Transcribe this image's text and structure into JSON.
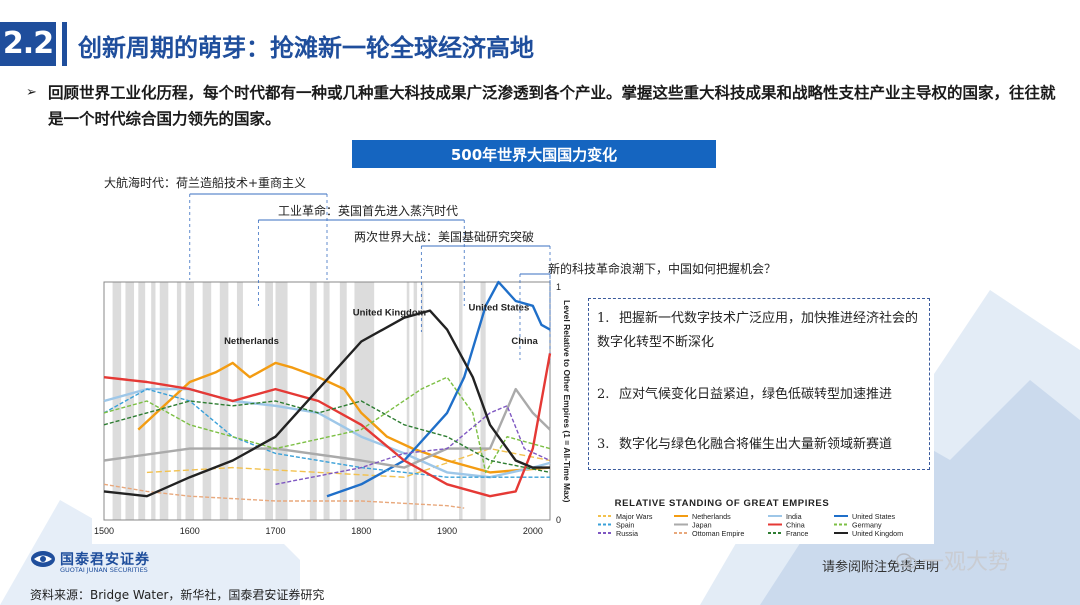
{
  "section": {
    "number": "2.2",
    "title": "创新周期的萌芽：抢滩新一轮全球经济高地"
  },
  "bullet": {
    "arrow": "➢",
    "text": "回顾世界工业化历程，每个时代都有一种或几种重大科技成果广泛渗透到各个产业。掌握这些重大科技成果和战略性支柱产业主导权的国家，往往就是一个时代综合国力领先的国家。"
  },
  "chart_header": "500年世界大国国力变化",
  "eras": [
    {
      "label": "大航海时代：荷兰造船技术+重商主义"
    },
    {
      "label": "工业革命：英国首先进入蒸汽时代"
    },
    {
      "label": "两次世界大战：美国基础研究突破"
    },
    {
      "label": "新的科技革命浪潮下，中国如何把握机会？"
    }
  ],
  "points": [
    {
      "num": "1.",
      "text": "把握新一代数字技术广泛应用，加快推进经济社会的数字化转型不断深化"
    },
    {
      "num": "2.",
      "text": "应对气候变化日益紧迫，绿色低碳转型加速推进"
    },
    {
      "num": "3.",
      "text": "数字化与绿色化融合将催生出大量新领域新赛道"
    }
  ],
  "chart_data": {
    "type": "line",
    "title": "RELATIVE STANDING OF GREAT EMPIRES",
    "ylabel": "Level Relative to Other Empires (1 = All-Time Max)",
    "xlim": [
      1500,
      2020
    ],
    "ylim": [
      0,
      1
    ],
    "x_ticks": [
      "1500",
      "1600",
      "1700",
      "1800",
      "1900",
      "2000"
    ],
    "y_ticks": [
      "0",
      "1"
    ],
    "legend_position": "bottom",
    "inline_labels": [
      "Netherlands",
      "United Kingdom",
      "United States",
      "China"
    ],
    "series": [
      {
        "name": "Major Wars",
        "color": "#f2c14e",
        "dash": "6 3",
        "points": [
          [
            1550,
            0.2
          ],
          [
            1650,
            0.22
          ],
          [
            1750,
            0.2
          ],
          [
            1850,
            0.18
          ],
          [
            1950,
            0.3
          ],
          [
            2020,
            0.25
          ]
        ]
      },
      {
        "name": "Netherlands",
        "color": "#f39c12",
        "points": [
          [
            1540,
            0.38
          ],
          [
            1570,
            0.48
          ],
          [
            1600,
            0.58
          ],
          [
            1630,
            0.62
          ],
          [
            1650,
            0.66
          ],
          [
            1670,
            0.6
          ],
          [
            1700,
            0.66
          ],
          [
            1720,
            0.64
          ],
          [
            1750,
            0.6
          ],
          [
            1780,
            0.55
          ],
          [
            1800,
            0.45
          ],
          [
            1830,
            0.35
          ],
          [
            1860,
            0.3
          ],
          [
            1900,
            0.25
          ],
          [
            1950,
            0.2
          ],
          [
            2020,
            0.22
          ]
        ]
      },
      {
        "name": "India",
        "color": "#9ec7e8",
        "points": [
          [
            1500,
            0.5
          ],
          [
            1550,
            0.55
          ],
          [
            1600,
            0.55
          ],
          [
            1650,
            0.5
          ],
          [
            1700,
            0.48
          ],
          [
            1750,
            0.45
          ],
          [
            1800,
            0.35
          ],
          [
            1850,
            0.28
          ],
          [
            1900,
            0.2
          ],
          [
            1950,
            0.18
          ],
          [
            2000,
            0.22
          ],
          [
            2020,
            0.24
          ]
        ]
      },
      {
        "name": "United States",
        "color": "#1f6fc9",
        "points": [
          [
            1760,
            0.1
          ],
          [
            1800,
            0.15
          ],
          [
            1850,
            0.25
          ],
          [
            1900,
            0.45
          ],
          [
            1920,
            0.6
          ],
          [
            1945,
            0.9
          ],
          [
            1960,
            1.0
          ],
          [
            1980,
            0.92
          ],
          [
            2000,
            0.9
          ],
          [
            2010,
            0.82
          ],
          [
            2020,
            0.8
          ]
        ]
      },
      {
        "name": "Spain",
        "color": "#3aa0d8",
        "dash": "4 2",
        "points": [
          [
            1500,
            0.45
          ],
          [
            1550,
            0.55
          ],
          [
            1600,
            0.5
          ],
          [
            1650,
            0.35
          ],
          [
            1700,
            0.28
          ],
          [
            1800,
            0.22
          ],
          [
            1900,
            0.18
          ],
          [
            2020,
            0.18
          ]
        ]
      },
      {
        "name": "Japan",
        "color": "#aaaaaa",
        "points": [
          [
            1500,
            0.25
          ],
          [
            1600,
            0.3
          ],
          [
            1700,
            0.3
          ],
          [
            1800,
            0.25
          ],
          [
            1850,
            0.22
          ],
          [
            1900,
            0.3
          ],
          [
            1950,
            0.3
          ],
          [
            1980,
            0.55
          ],
          [
            2000,
            0.45
          ],
          [
            2020,
            0.38
          ]
        ]
      },
      {
        "name": "China",
        "color": "#e53935",
        "points": [
          [
            1500,
            0.6
          ],
          [
            1550,
            0.58
          ],
          [
            1600,
            0.55
          ],
          [
            1650,
            0.5
          ],
          [
            1700,
            0.55
          ],
          [
            1750,
            0.5
          ],
          [
            1800,
            0.4
          ],
          [
            1850,
            0.25
          ],
          [
            1900,
            0.15
          ],
          [
            1950,
            0.1
          ],
          [
            1980,
            0.12
          ],
          [
            2000,
            0.3
          ],
          [
            2020,
            0.7
          ]
        ]
      },
      {
        "name": "Germany",
        "color": "#7cbf44",
        "dash": "4 2",
        "points": [
          [
            1500,
            0.45
          ],
          [
            1550,
            0.5
          ],
          [
            1600,
            0.4
          ],
          [
            1700,
            0.3
          ],
          [
            1800,
            0.38
          ],
          [
            1870,
            0.55
          ],
          [
            1900,
            0.6
          ],
          [
            1930,
            0.45
          ],
          [
            1945,
            0.2
          ],
          [
            1970,
            0.35
          ],
          [
            2020,
            0.3
          ]
        ]
      },
      {
        "name": "Russia",
        "color": "#7e57c2",
        "dash": "4 2",
        "points": [
          [
            1700,
            0.15
          ],
          [
            1800,
            0.22
          ],
          [
            1850,
            0.28
          ],
          [
            1900,
            0.3
          ],
          [
            1950,
            0.45
          ],
          [
            1970,
            0.48
          ],
          [
            1990,
            0.3
          ],
          [
            2020,
            0.25
          ]
        ]
      },
      {
        "name": "Ottoman Empire",
        "color": "#e8a87c",
        "dash": "4 2",
        "points": [
          [
            1500,
            0.15
          ],
          [
            1550,
            0.12
          ],
          [
            1600,
            0.1
          ],
          [
            1700,
            0.08
          ],
          [
            1800,
            0.08
          ],
          [
            1900,
            0.06
          ],
          [
            1920,
            0.05
          ]
        ]
      },
      {
        "name": "France",
        "color": "#2e7d32",
        "dash": "4 2",
        "points": [
          [
            1500,
            0.4
          ],
          [
            1550,
            0.45
          ],
          [
            1600,
            0.5
          ],
          [
            1650,
            0.48
          ],
          [
            1700,
            0.5
          ],
          [
            1750,
            0.45
          ],
          [
            1800,
            0.5
          ],
          [
            1850,
            0.4
          ],
          [
            1900,
            0.35
          ],
          [
            1950,
            0.25
          ],
          [
            2020,
            0.2
          ]
        ]
      },
      {
        "name": "United Kingdom",
        "color": "#222222",
        "points": [
          [
            1500,
            0.12
          ],
          [
            1550,
            0.1
          ],
          [
            1600,
            0.18
          ],
          [
            1650,
            0.25
          ],
          [
            1700,
            0.35
          ],
          [
            1750,
            0.55
          ],
          [
            1800,
            0.75
          ],
          [
            1850,
            0.85
          ],
          [
            1880,
            0.88
          ],
          [
            1900,
            0.8
          ],
          [
            1930,
            0.6
          ],
          [
            1950,
            0.4
          ],
          [
            1980,
            0.25
          ],
          [
            2000,
            0.22
          ],
          [
            2020,
            0.22
          ]
        ]
      }
    ]
  },
  "footer": {
    "logo_cn": "国泰君安证券",
    "logo_en": "GUOTAI JUNAN SECURITIES",
    "source": "资料来源：Bridge Water，新华社，国泰君安证券研究",
    "disclaimer": "请参阅附注免责声明",
    "watermark": "一观大势"
  },
  "colors": {
    "brand": "#1f4e9c",
    "header_band": "#1565c0"
  }
}
